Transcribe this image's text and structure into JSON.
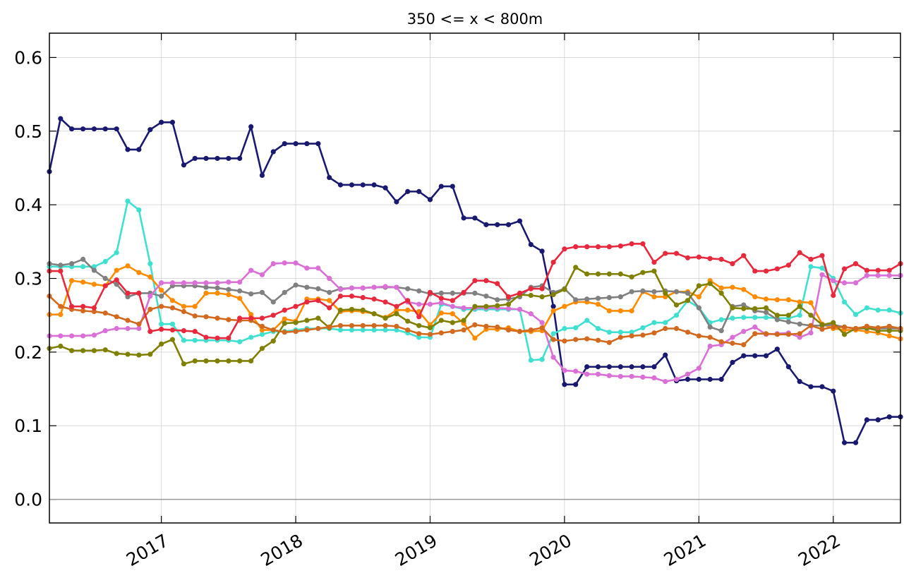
{
  "chart_data": {
    "type": "line",
    "title": "350 <= x < 800m",
    "x": [
      2016.167,
      2016.25,
      2016.333,
      2016.417,
      2016.5,
      2016.583,
      2016.667,
      2016.75,
      2016.833,
      2016.917,
      2017,
      2017.083,
      2017.167,
      2017.25,
      2017.333,
      2017.417,
      2017.5,
      2017.583,
      2017.667,
      2017.75,
      2017.833,
      2017.917,
      2018,
      2018.083,
      2018.167,
      2018.25,
      2018.333,
      2018.417,
      2018.5,
      2018.583,
      2018.667,
      2018.75,
      2018.833,
      2018.917,
      2019,
      2019.083,
      2019.167,
      2019.25,
      2019.333,
      2019.417,
      2019.5,
      2019.583,
      2019.667,
      2019.75,
      2019.833,
      2019.917,
      2020,
      2020.083,
      2020.167,
      2020.25,
      2020.333,
      2020.417,
      2020.5,
      2020.583,
      2020.667,
      2020.75,
      2020.833,
      2020.917,
      2021,
      2021.083,
      2021.167,
      2021.25,
      2021.333,
      2021.417,
      2021.5,
      2021.583,
      2021.667,
      2021.75,
      2021.833,
      2021.917,
      2022,
      2022.083,
      2022.167,
      2022.25,
      2022.333,
      2022.417,
      2022.5
    ],
    "series": [
      {
        "color": "#191970",
        "values": [
          0.445,
          0.517,
          0.503,
          0.503,
          0.503,
          0.503,
          0.503,
          0.475,
          0.475,
          0.502,
          0.512,
          0.512,
          0.454,
          0.463,
          0.463,
          0.463,
          0.463,
          0.463,
          0.506,
          0.44,
          0.472,
          0.483,
          0.483,
          0.483,
          0.483,
          0.437,
          0.427,
          0.427,
          0.427,
          0.427,
          0.423,
          0.404,
          0.418,
          0.418,
          0.407,
          0.425,
          0.425,
          0.382,
          0.382,
          0.373,
          0.373,
          0.373,
          0.378,
          0.346,
          0.337,
          0.262,
          0.156,
          0.156,
          0.18,
          0.18,
          0.18,
          0.18,
          0.18,
          0.18,
          0.18,
          0.196,
          0.161,
          0.163,
          0.163,
          0.163,
          0.163,
          0.186,
          0.195,
          0.195,
          0.195,
          0.204,
          0.18,
          0.16,
          0.153,
          0.153,
          0.147,
          0.077,
          0.077,
          0.108,
          0.108,
          0.112,
          0.112
        ]
      },
      {
        "color": "#40e0d0",
        "values": [
          0.316,
          0.316,
          0.316,
          0.316,
          0.316,
          0.323,
          0.335,
          0.405,
          0.393,
          0.32,
          0.238,
          0.238,
          0.216,
          0.216,
          0.216,
          0.216,
          0.216,
          0.214,
          0.22,
          0.224,
          0.228,
          0.228,
          0.23,
          0.232,
          0.232,
          0.232,
          0.23,
          0.23,
          0.23,
          0.23,
          0.23,
          0.23,
          0.226,
          0.22,
          0.22,
          0.265,
          0.262,
          0.258,
          0.258,
          0.258,
          0.258,
          0.258,
          0.258,
          0.189,
          0.19,
          0.225,
          0.232,
          0.233,
          0.243,
          0.232,
          0.227,
          0.227,
          0.227,
          0.233,
          0.24,
          0.24,
          0.25,
          0.27,
          0.26,
          0.24,
          0.244,
          0.246,
          0.247,
          0.247,
          0.247,
          0.246,
          0.246,
          0.25,
          0.316,
          0.314,
          0.3,
          0.268,
          0.251,
          0.26,
          0.257,
          0.257,
          0.253
        ]
      },
      {
        "color": "#ff8c00",
        "values": [
          0.251,
          0.251,
          0.297,
          0.295,
          0.292,
          0.29,
          0.311,
          0.317,
          0.308,
          0.302,
          0.284,
          0.27,
          0.262,
          0.262,
          0.28,
          0.28,
          0.278,
          0.273,
          0.251,
          0.23,
          0.23,
          0.245,
          0.242,
          0.272,
          0.272,
          0.27,
          0.255,
          0.256,
          0.255,
          0.252,
          0.247,
          0.257,
          0.257,
          0.255,
          0.237,
          0.253,
          0.252,
          0.239,
          0.219,
          0.231,
          0.231,
          0.233,
          0.228,
          0.228,
          0.229,
          0.256,
          0.262,
          0.268,
          0.268,
          0.265,
          0.256,
          0.256,
          0.256,
          0.282,
          0.275,
          0.275,
          0.282,
          0.282,
          0.275,
          0.297,
          0.287,
          0.288,
          0.285,
          0.275,
          0.272,
          0.271,
          0.271,
          0.268,
          0.267,
          0.238,
          0.232,
          0.23,
          0.23,
          0.228,
          0.226,
          0.222,
          0.218
        ]
      },
      {
        "color": "#808080",
        "values": [
          0.32,
          0.318,
          0.32,
          0.326,
          0.311,
          0.3,
          0.292,
          0.275,
          0.28,
          0.28,
          0.276,
          0.29,
          0.29,
          0.29,
          0.288,
          0.287,
          0.285,
          0.283,
          0.279,
          0.281,
          0.268,
          0.281,
          0.291,
          0.288,
          0.286,
          0.281,
          0.286,
          0.287,
          0.287,
          0.288,
          0.288,
          0.288,
          0.286,
          0.283,
          0.279,
          0.28,
          0.28,
          0.28,
          0.28,
          0.276,
          0.271,
          0.272,
          0.275,
          0.288,
          0.29,
          0.281,
          0.286,
          0.271,
          0.272,
          0.273,
          0.274,
          0.275,
          0.282,
          0.283,
          0.282,
          0.283,
          0.282,
          0.28,
          0.26,
          0.234,
          0.229,
          0.262,
          0.264,
          0.256,
          0.254,
          0.244,
          0.241,
          0.238,
          0.236,
          0.236,
          0.237,
          0.234,
          0.232,
          0.232,
          0.232,
          0.232,
          0.232
        ]
      },
      {
        "color": "#da70d6",
        "values": [
          0.222,
          0.222,
          0.222,
          0.222,
          0.223,
          0.229,
          0.232,
          0.232,
          0.232,
          0.276,
          0.294,
          0.294,
          0.294,
          0.294,
          0.294,
          0.294,
          0.295,
          0.295,
          0.311,
          0.305,
          0.32,
          0.321,
          0.321,
          0.314,
          0.314,
          0.3,
          0.285,
          0.287,
          0.287,
          0.288,
          0.289,
          0.288,
          0.268,
          0.265,
          0.265,
          0.267,
          0.262,
          0.26,
          0.26,
          0.26,
          0.26,
          0.259,
          0.258,
          0.252,
          0.24,
          0.193,
          0.175,
          0.174,
          0.17,
          0.17,
          0.168,
          0.167,
          0.167,
          0.166,
          0.165,
          0.16,
          0.163,
          0.17,
          0.178,
          0.208,
          0.21,
          0.22,
          0.228,
          0.234,
          0.224,
          0.225,
          0.226,
          0.22,
          0.226,
          0.305,
          0.297,
          0.294,
          0.294,
          0.304,
          0.304,
          0.304,
          0.304
        ]
      },
      {
        "color": "#808000",
        "values": [
          0.205,
          0.208,
          0.202,
          0.202,
          0.202,
          0.203,
          0.198,
          0.197,
          0.196,
          0.197,
          0.211,
          0.217,
          0.184,
          0.188,
          0.188,
          0.188,
          0.188,
          0.188,
          0.188,
          0.205,
          0.215,
          0.239,
          0.24,
          0.243,
          0.246,
          0.233,
          0.257,
          0.258,
          0.257,
          0.252,
          0.246,
          0.252,
          0.242,
          0.236,
          0.233,
          0.243,
          0.24,
          0.243,
          0.262,
          0.262,
          0.263,
          0.265,
          0.278,
          0.277,
          0.275,
          0.278,
          0.285,
          0.315,
          0.306,
          0.306,
          0.306,
          0.306,
          0.302,
          0.308,
          0.31,
          0.28,
          0.264,
          0.27,
          0.29,
          0.293,
          0.28,
          0.26,
          0.259,
          0.259,
          0.26,
          0.25,
          0.25,
          0.262,
          0.25,
          0.237,
          0.24,
          0.224,
          0.232,
          0.233,
          0.229,
          0.229,
          0.229
        ]
      },
      {
        "color": "#d2691e",
        "values": [
          0.276,
          0.262,
          0.258,
          0.256,
          0.255,
          0.253,
          0.248,
          0.243,
          0.238,
          0.258,
          0.262,
          0.26,
          0.255,
          0.249,
          0.248,
          0.246,
          0.244,
          0.243,
          0.243,
          0.235,
          0.23,
          0.227,
          0.228,
          0.23,
          0.232,
          0.234,
          0.236,
          0.236,
          0.236,
          0.236,
          0.236,
          0.235,
          0.23,
          0.225,
          0.224,
          0.226,
          0.228,
          0.23,
          0.237,
          0.235,
          0.234,
          0.23,
          0.228,
          0.23,
          0.233,
          0.217,
          0.215,
          0.217,
          0.218,
          0.216,
          0.213,
          0.22,
          0.222,
          0.223,
          0.226,
          0.232,
          0.232,
          0.227,
          0.222,
          0.22,
          0.214,
          0.212,
          0.21,
          0.225,
          0.225,
          0.224,
          0.224,
          0.225,
          0.236,
          0.231,
          0.234,
          0.234,
          0.232,
          0.235,
          0.233,
          0.235,
          0.232
        ]
      },
      {
        "color": "#e8283c",
        "values": [
          0.31,
          0.31,
          0.262,
          0.262,
          0.26,
          0.29,
          0.298,
          0.28,
          0.28,
          0.228,
          0.231,
          0.23,
          0.229,
          0.228,
          0.22,
          0.219,
          0.219,
          0.246,
          0.246,
          0.246,
          0.25,
          0.257,
          0.262,
          0.268,
          0.27,
          0.26,
          0.276,
          0.276,
          0.274,
          0.272,
          0.268,
          0.262,
          0.27,
          0.248,
          0.281,
          0.273,
          0.27,
          0.281,
          0.297,
          0.297,
          0.293,
          0.275,
          0.28,
          0.286,
          0.286,
          0.322,
          0.34,
          0.343,
          0.343,
          0.343,
          0.343,
          0.344,
          0.347,
          0.347,
          0.322,
          0.334,
          0.334,
          0.328,
          0.329,
          0.327,
          0.326,
          0.32,
          0.331,
          0.31,
          0.31,
          0.313,
          0.318,
          0.335,
          0.326,
          0.331,
          0.277,
          0.313,
          0.32,
          0.311,
          0.311,
          0.311,
          0.32
        ]
      }
    ],
    "xlim": [
      2016.167,
      2022.5
    ],
    "xticks": [
      2017,
      2018,
      2019,
      2020,
      2021,
      2022
    ],
    "ylim": [
      -0.032,
      0.633
    ],
    "yticks": [
      {
        "value": 0,
        "label": "0.0"
      },
      0.1,
      0.2,
      0.3,
      0.4,
      0.5,
      0.6
    ],
    "axhline": 0,
    "grid": true
  }
}
